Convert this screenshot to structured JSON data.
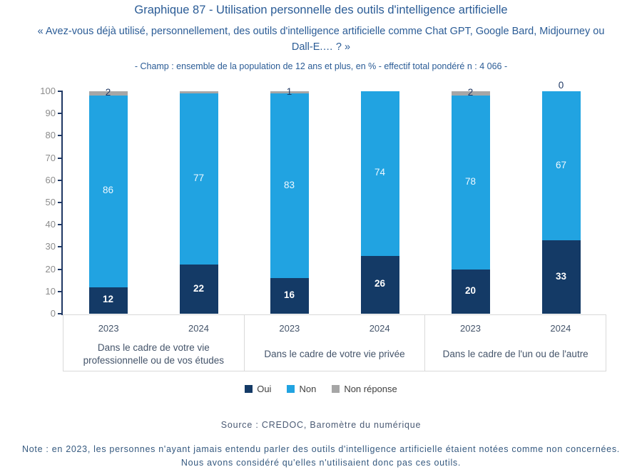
{
  "header": {
    "title": "Graphique 87 - Utilisation personnelle des outils d'intelligence artificielle",
    "subtitle": "« Avez-vous déjà utilisé, personnellement, des outils d'intelligence artificielle comme Chat GPT, Google Bard, Midjourney ou Dall-E.… ? »",
    "champ": "- Champ : ensemble de la population de 12 ans et plus, en % - effectif total pondéré n : 4 066 -"
  },
  "chart_data": {
    "type": "bar",
    "stacked": true,
    "title": "Graphique 87 - Utilisation personnelle des outils d'intelligence artificielle",
    "ylim": [
      0,
      100
    ],
    "yticks": [
      0,
      10,
      20,
      30,
      40,
      50,
      60,
      70,
      80,
      90,
      100
    ],
    "grid": false,
    "categories": [
      "2023",
      "2024",
      "2023",
      "2024",
      "2023",
      "2024"
    ],
    "groups": [
      {
        "label": "Dans le cadre de votre vie professionnelle ou de vos études",
        "years": [
          "2023",
          "2024"
        ]
      },
      {
        "label": "Dans le cadre de votre vie privée",
        "years": [
          "2023",
          "2024"
        ]
      },
      {
        "label": "Dans le cadre de l'un ou de l'autre",
        "years": [
          "2023",
          "2024"
        ]
      }
    ],
    "series": [
      {
        "name": "Oui",
        "color": "#143a66",
        "values": [
          12,
          22,
          16,
          26,
          20,
          33
        ],
        "labels": [
          "12",
          "22",
          "16",
          "26",
          "20",
          "33"
        ]
      },
      {
        "name": "Non",
        "color": "#21a3e1",
        "values": [
          86,
          77,
          83,
          74,
          78,
          67
        ],
        "labels": [
          "86",
          "77",
          "83",
          "74",
          "78",
          "67"
        ]
      },
      {
        "name": "Non réponse",
        "color": "#a6a6a6",
        "values": [
          2,
          1,
          1,
          0,
          2,
          0
        ],
        "labels": [
          "2",
          null,
          "1",
          null,
          "2",
          "0"
        ]
      }
    ]
  },
  "legend": {
    "items": [
      {
        "label": "Oui",
        "color": "#143a66"
      },
      {
        "label": "Non",
        "color": "#21a3e1"
      },
      {
        "label": "Non réponse",
        "color": "#a6a6a6"
      }
    ]
  },
  "footer": {
    "source": "Source : CREDOC, Baromètre du numérique",
    "note": "Note : en 2023, les personnes n'ayant jamais entendu parler des outils d'intelligence artificielle étaient notées comme non concernées. Nous avons considéré qu'elles n'utilisaient donc pas ces outils."
  }
}
